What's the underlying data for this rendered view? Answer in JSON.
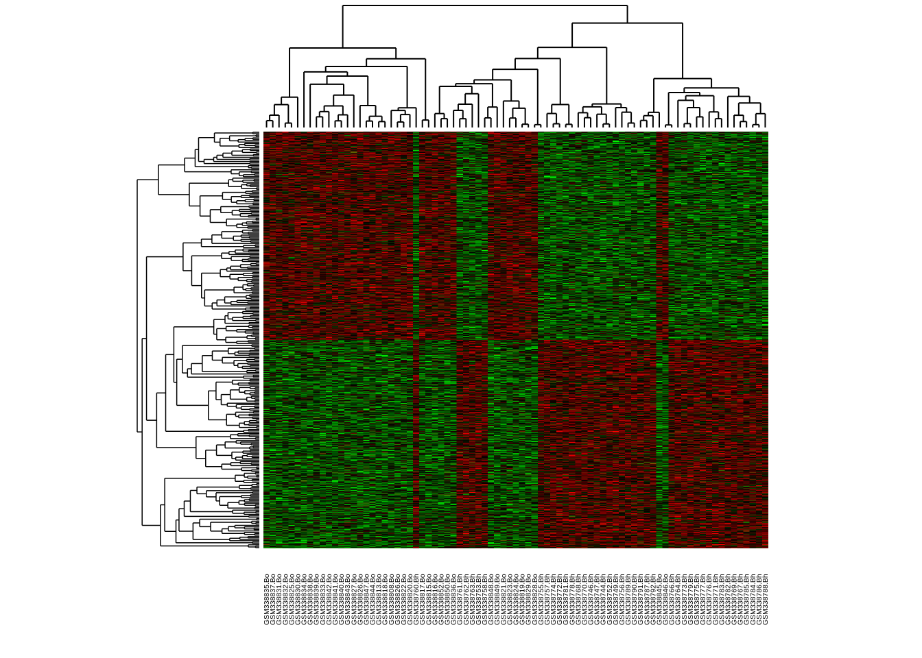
{
  "chart_data": {
    "type": "heatmap",
    "title": "",
    "xlabel": "",
    "ylabel": "",
    "color_scale": {
      "low": "#00ff00",
      "mid": "#000000",
      "high": "#ff0000"
    },
    "row_count": 1200,
    "row_dendrogram": true,
    "column_dendrogram": true,
    "column_labels": [
      "GSM338835.Bo",
      "GSM338837.Bo",
      "GSM338831.Bo",
      "GSM338832.Bo",
      "GSM338825.Bo",
      "GSM338830.Bo",
      "GSM338834.Bo",
      "GSM338838.Bo",
      "GSM338839.Bo",
      "GSM338833.Bo",
      "GSM338842.Bo",
      "GSM338841.Bo",
      "GSM338840.Bo",
      "GSM338843.Bo",
      "GSM338827.Bo",
      "GSM338826.Bo",
      "GSM338847.Bo",
      "GSM338844.Bo",
      "GSM338813.Bo",
      "GSM338818.Bo",
      "GSM338808.Bo",
      "GSM338826.Bo",
      "GSM338822.Bo",
      "GSM338820.Bo",
      "GSM338760.Bh",
      "GSM338817.Bo",
      "GSM338815.Bo",
      "GSM338816.Bo",
      "GSM338852.Bo",
      "GSM338850.Bo",
      "GSM338836.Bo",
      "GSM338761.Bh",
      "GSM338762.Bh",
      "GSM338763.Bh",
      "GSM338753.Bh",
      "GSM338758.Bh",
      "GSM338848.Bo",
      "GSM338849.Bo",
      "GSM338821.Bo",
      "GSM338823.Bo",
      "GSM338824.Bo",
      "GSM338819.Bo",
      "GSM338829.Bo",
      "GSM338828.Bo",
      "GSM338755.Bh",
      "GSM338757.Bh",
      "GSM338774.Bh",
      "GSM338772.Bh",
      "GSM338781.Bh",
      "GSM338778.Bh",
      "GSM338768.Bh",
      "GSM338770.Bh",
      "GSM338746.Bh",
      "GSM338747.Bh",
      "GSM338744.Bh",
      "GSM338752.Bh",
      "GSM338749.Bh",
      "GSM338756.Bh",
      "GSM338789.Bh",
      "GSM338790.Bh",
      "GSM338791.Bh",
      "GSM338787.Bh",
      "GSM338792.Bh",
      "GSM338845.Bo",
      "GSM338846.Bo",
      "GSM338766.Bh",
      "GSM338764.Bh",
      "GSM338773.Bh",
      "GSM338779.Bh",
      "GSM338775.Bh",
      "GSM338777.Bh",
      "GSM338776.Bh",
      "GSM338771.Bh",
      "GSM338783.Bh",
      "GSM338782.Bh",
      "GSM338769.Bh",
      "GSM338767.Bh",
      "GSM338785.Bh",
      "GSM338784.Bh",
      "GSM338786.Bh",
      "GSM338788.Bh"
    ],
    "sample_groups": [
      "Bo",
      "Bh"
    ]
  }
}
